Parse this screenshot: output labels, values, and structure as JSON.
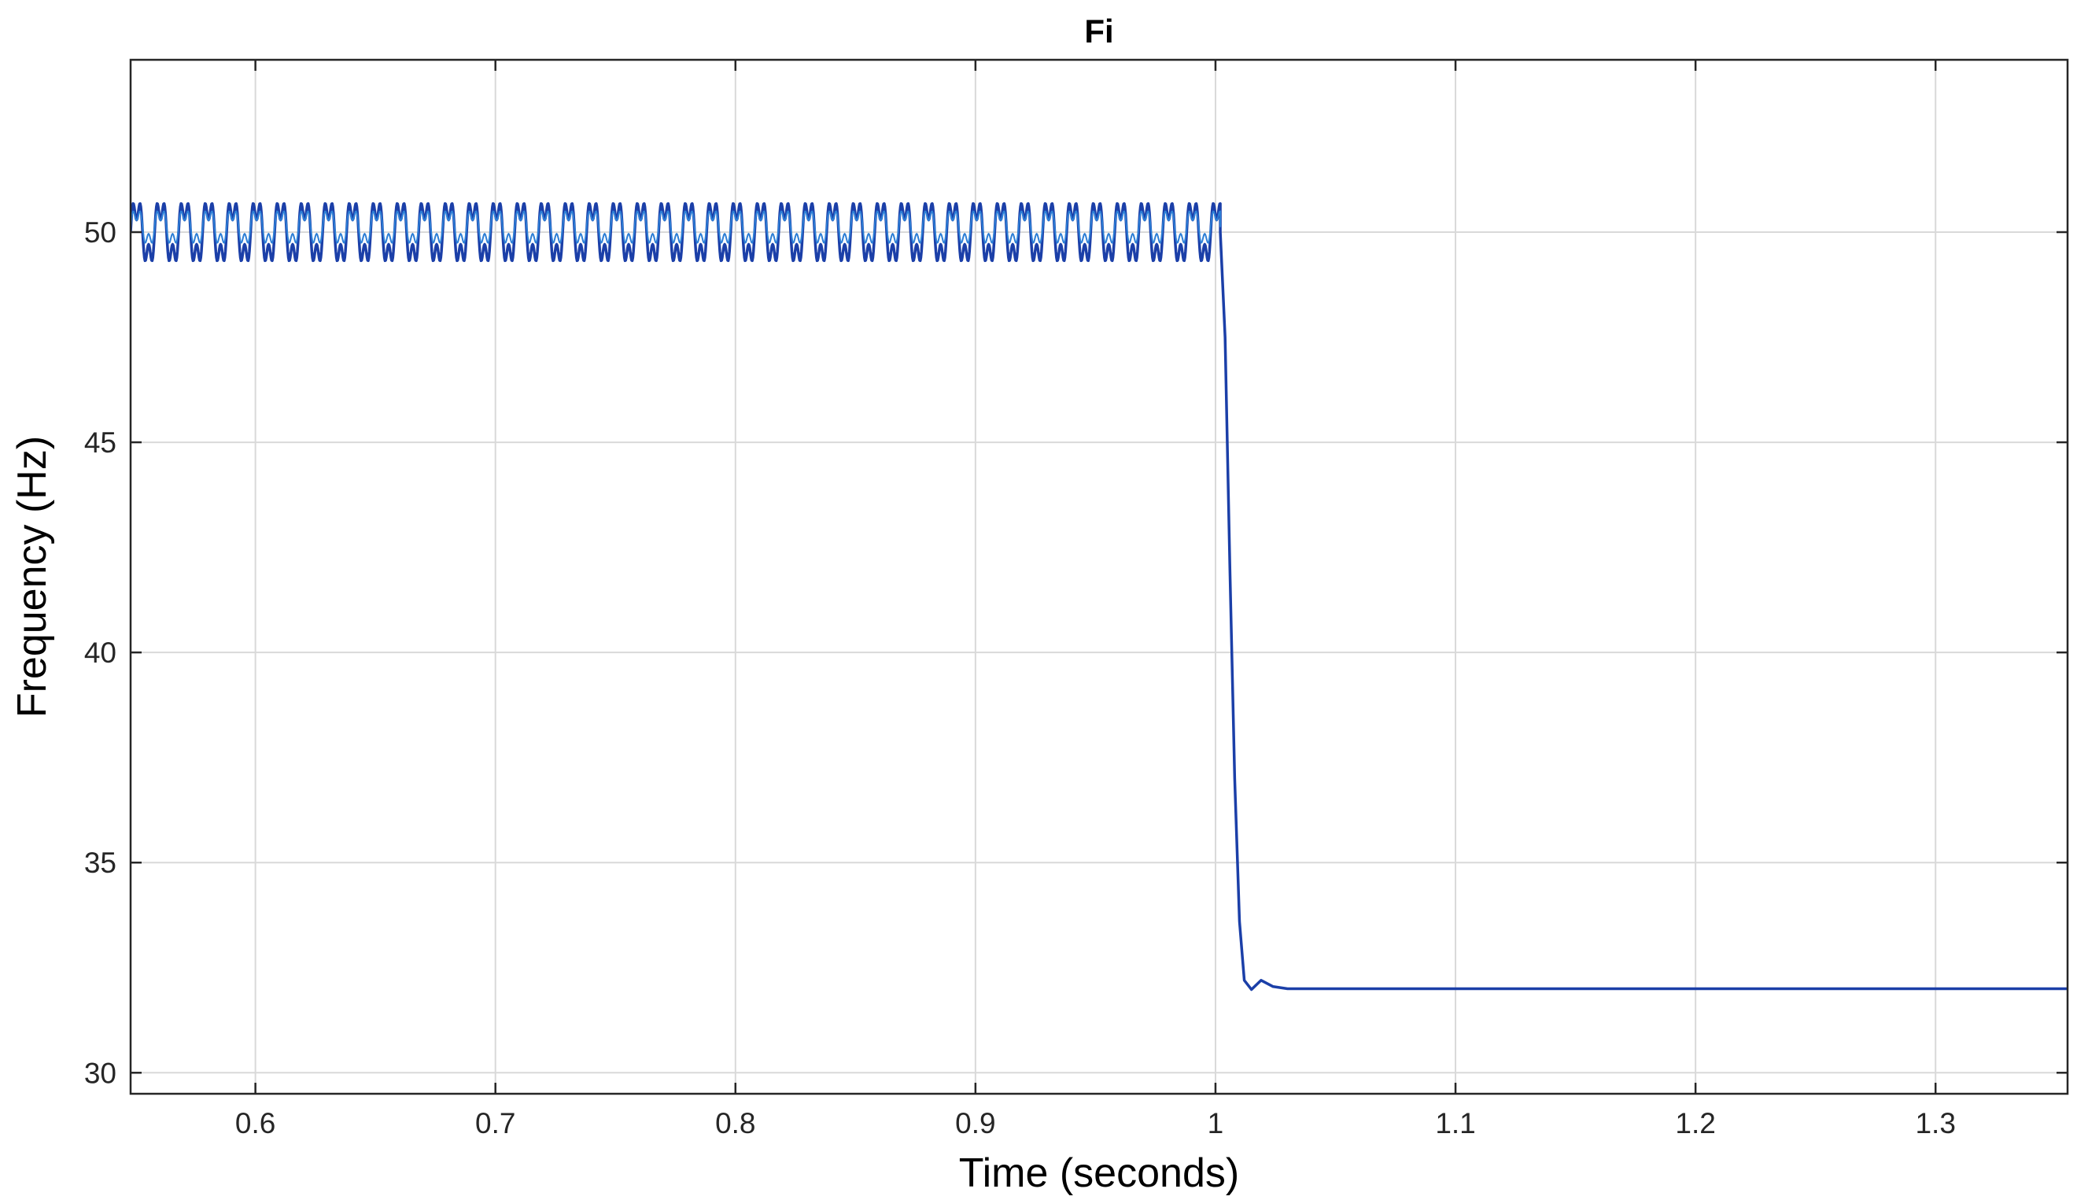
{
  "chart_data": {
    "type": "line",
    "title": "Fi",
    "xlabel": "Time (seconds)",
    "ylabel": "Frequency (Hz)",
    "xlim": [
      0.548,
      1.355
    ],
    "ylim": [
      29.5,
      54.1
    ],
    "xticks": [
      0.6,
      0.7,
      0.8,
      0.9,
      1.0,
      1.1,
      1.2,
      1.3
    ],
    "xtick_labels": [
      "0.6",
      "0.7",
      "0.8",
      "0.9",
      "1",
      "1.1",
      "1.2",
      "1.3"
    ],
    "yticks": [
      30,
      35,
      40,
      45,
      50
    ],
    "ytick_labels": [
      "30",
      "35",
      "40",
      "45",
      "50"
    ],
    "grid": true,
    "legend": "none",
    "colors": {
      "line": "#1b3fa8",
      "line_inner": "#2d7fd6",
      "grid": "#d9d9d9",
      "axes": "#262626"
    },
    "series": [
      {
        "oscillation": {
          "t_start": 0.548,
          "t_end": 1.002,
          "period": 0.01,
          "mean": 50.0,
          "max": 51.05,
          "min": 49.1,
          "inner_level": 50.25
        },
        "transient": {
          "t": [
            1.002,
            1.004,
            1.006,
            1.008,
            1.01,
            1.012,
            1.015,
            1.019,
            1.024,
            1.03,
            1.1,
            1.2,
            1.355
          ],
          "f": [
            50.0,
            47.5,
            42.0,
            37.0,
            33.6,
            32.2,
            31.98,
            32.2,
            32.05,
            32.0,
            32.0,
            32.0,
            32.0
          ]
        }
      }
    ]
  }
}
